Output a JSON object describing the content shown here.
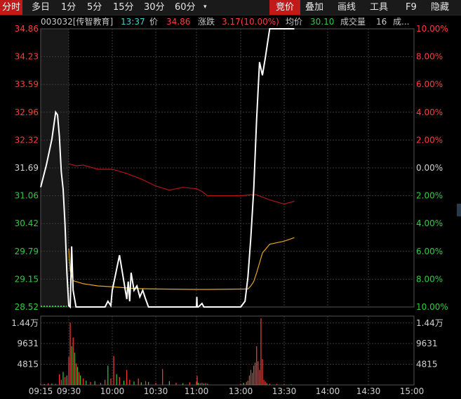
{
  "toolbar": {
    "items": [
      "分时",
      "多日",
      "1分",
      "5分",
      "15分",
      "30分",
      "60分"
    ],
    "more_symbol": "▾",
    "right_items": [
      "竞价",
      "叠加",
      "画线",
      "工具",
      "F9",
      "隐藏"
    ],
    "active_left": "分时",
    "active_right": "竞价"
  },
  "info": {
    "stock": "003032[传智教育]",
    "time": "13:37",
    "price_label": "价",
    "price": "34.86",
    "change_label": "涨跌",
    "change": "3.17(10.00%)",
    "avg_label": "均价",
    "avg": "30.10",
    "volume_label": "成交量",
    "volume": "16",
    "more_label": "成..."
  },
  "axes": {
    "price_ticks": [
      "34.86",
      "34.23",
      "33.59",
      "32.96",
      "32.32",
      "31.69",
      "31.06",
      "30.42",
      "29.79",
      "29.15",
      "28.52"
    ],
    "pct_ticks": [
      "10.00%",
      "8.00%",
      "6.00%",
      "4.00%",
      "2.00%",
      "0.00%",
      "2.00%",
      "4.00%",
      "6.00%",
      "8.00%",
      "10.00%"
    ],
    "volume_ticks": [
      "1.44万",
      "9631",
      "4815"
    ],
    "time_ticks": [
      "09:15",
      "09:30",
      "10:00",
      "10:30",
      "11:00",
      "13:00",
      "13:30",
      "14:00",
      "14:30",
      "15:00"
    ]
  },
  "colors": {
    "up": "#ff3b3b",
    "down": "#2ecc40",
    "price_line": "#ffffff",
    "avg_line": "#e6a817",
    "diff_line": "#b01616",
    "grid": "#3a3a3a"
  },
  "chart_data": {
    "type": "line",
    "title": "",
    "xlabel": "",
    "ylabel": "",
    "ylim": [
      28.52,
      34.86
    ],
    "prev_close": 31.69,
    "series": [
      {
        "x": [
          "09:15",
          "09:18",
          "09:21",
          "09:23",
          "09:24",
          "09:25",
          "09:26",
          "09:27",
          "09:28",
          "09:29",
          "09:30",
          "09:31",
          "09:32",
          "09:33",
          "09:35",
          "09:40",
          "09:50",
          "09:55",
          "09:57",
          "09:59",
          "10:00",
          "10:05",
          "10:08",
          "10:10",
          "10:11",
          "10:12",
          "10:13",
          "10:15",
          "10:17",
          "10:19",
          "10:21",
          "10:23",
          "10:25",
          "10:28",
          "10:30",
          "10:32",
          "10:35",
          "10:40",
          "10:50",
          "11:00",
          "11:01",
          "11:02",
          "11:05",
          "11:15",
          "11:20",
          "11:25",
          "11:30",
          "13:00",
          "13:03",
          "13:05",
          "13:07",
          "13:09",
          "13:11",
          "13:13",
          "13:15",
          "13:17",
          "13:20",
          "13:25",
          "13:30",
          "13:37"
        ],
        "values": [
          31.25,
          31.75,
          32.35,
          32.96,
          32.9,
          32.4,
          31.6,
          31.2,
          30.4,
          29.3,
          28.55,
          28.52,
          29.9,
          28.9,
          28.52,
          28.52,
          28.52,
          28.52,
          28.65,
          28.55,
          28.9,
          29.7,
          29.1,
          28.7,
          29.1,
          28.65,
          29.3,
          28.9,
          29.0,
          28.75,
          28.9,
          28.7,
          28.52,
          28.52,
          28.52,
          28.52,
          28.52,
          28.52,
          28.52,
          28.52,
          28.75,
          28.52,
          28.52,
          28.6,
          28.52,
          28.52,
          28.52,
          28.52,
          28.65,
          29.2,
          30.1,
          31.2,
          32.8,
          34.1,
          33.8,
          34.2,
          34.86,
          34.86,
          34.86,
          34.86
        ]
      },
      {
        "x": [
          "09:30",
          "09:31",
          "09:33",
          "09:40",
          "09:50",
          "10:00",
          "10:15",
          "10:30",
          "11:00",
          "11:30",
          "13:05",
          "13:07",
          "13:09",
          "13:11",
          "13:15",
          "13:20",
          "13:30",
          "13:37"
        ],
        "values": [
          29.85,
          29.35,
          29.12,
          29.05,
          29.0,
          28.98,
          28.94,
          28.93,
          28.92,
          28.92,
          28.93,
          29.0,
          29.1,
          29.3,
          29.75,
          29.95,
          30.02,
          30.1
        ]
      },
      {
        "x": [
          "09:30",
          "09:35",
          "09:40",
          "09:50",
          "10:00",
          "10:10",
          "10:20",
          "10:30",
          "10:40",
          "10:50",
          "11:00",
          "11:15",
          "11:30",
          "13:00",
          "13:10",
          "13:20",
          "13:30",
          "13:37"
        ],
        "values": [
          0.3,
          0.15,
          0.2,
          -0.1,
          -0.1,
          -0.4,
          -0.8,
          -1.3,
          -1.6,
          -1.4,
          -1.5,
          -1.7,
          -2.0,
          -2.0,
          -1.9,
          -2.3,
          -2.6,
          -2.4
        ]
      }
    ],
    "volume_ylim": [
      0,
      16000
    ],
    "volume_bars": [
      {
        "t": "09:15",
        "v": 300
      },
      {
        "t": "09:17",
        "v": 200
      },
      {
        "t": "09:19",
        "v": 400
      },
      {
        "t": "09:21",
        "v": 300
      },
      {
        "t": "09:23",
        "v": 250
      },
      {
        "t": "09:25",
        "v": 2500
      },
      {
        "t": "09:26",
        "v": 1200
      },
      {
        "t": "09:27",
        "v": 3000
      },
      {
        "t": "09:28",
        "v": 1800
      },
      {
        "t": "09:29",
        "v": 2200
      },
      {
        "t": "09:30",
        "v": 6500
      },
      {
        "t": "09:31",
        "v": 14500
      },
      {
        "t": "09:32",
        "v": 9000
      },
      {
        "t": "09:33",
        "v": 11000
      },
      {
        "t": "09:34",
        "v": 7500
      },
      {
        "t": "09:35",
        "v": 5000
      },
      {
        "t": "09:36",
        "v": 4200
      },
      {
        "t": "09:37",
        "v": 3000
      },
      {
        "t": "09:38",
        "v": 2200
      },
      {
        "t": "09:40",
        "v": 1500
      },
      {
        "t": "09:42",
        "v": 1000
      },
      {
        "t": "09:45",
        "v": 700
      },
      {
        "t": "09:48",
        "v": 900
      },
      {
        "t": "09:52",
        "v": 500
      },
      {
        "t": "09:55",
        "v": 1200
      },
      {
        "t": "09:57",
        "v": 4500
      },
      {
        "t": "09:59",
        "v": 1500
      },
      {
        "t": "10:01",
        "v": 6700
      },
      {
        "t": "10:03",
        "v": 2500
      },
      {
        "t": "10:05",
        "v": 1800
      },
      {
        "t": "10:08",
        "v": 1000
      },
      {
        "t": "10:10",
        "v": 3500
      },
      {
        "t": "10:12",
        "v": 1200
      },
      {
        "t": "10:15",
        "v": 800
      },
      {
        "t": "10:18",
        "v": 1500
      },
      {
        "t": "10:20",
        "v": 600
      },
      {
        "t": "10:23",
        "v": 900
      },
      {
        "t": "10:25",
        "v": 700
      },
      {
        "t": "10:30",
        "v": 500
      },
      {
        "t": "10:35",
        "v": 3700
      },
      {
        "t": "10:40",
        "v": 900
      },
      {
        "t": "10:45",
        "v": 500
      },
      {
        "t": "10:50",
        "v": 400
      },
      {
        "t": "10:55",
        "v": 600
      },
      {
        "t": "11:00",
        "v": 700
      },
      {
        "t": "11:02",
        "v": 2100
      },
      {
        "t": "11:05",
        "v": 500
      },
      {
        "t": "11:10",
        "v": 400
      },
      {
        "t": "11:15",
        "v": 500
      },
      {
        "t": "11:20",
        "v": 300
      },
      {
        "t": "11:25",
        "v": 400
      },
      {
        "t": "11:30",
        "v": 300
      },
      {
        "t": "13:00",
        "v": 300
      },
      {
        "t": "13:02",
        "v": 500
      },
      {
        "t": "13:04",
        "v": 700
      },
      {
        "t": "13:05",
        "v": 1000
      },
      {
        "t": "13:06",
        "v": 2200
      },
      {
        "t": "13:07",
        "v": 3500
      },
      {
        "t": "13:08",
        "v": 2800
      },
      {
        "t": "13:09",
        "v": 4500
      },
      {
        "t": "13:10",
        "v": 5200
      },
      {
        "t": "13:11",
        "v": 9000
      },
      {
        "t": "13:12",
        "v": 5500
      },
      {
        "t": "13:13",
        "v": 3500
      },
      {
        "t": "13:14",
        "v": 15500
      },
      {
        "t": "13:15",
        "v": 6000
      },
      {
        "t": "13:16",
        "v": 1200
      },
      {
        "t": "13:17",
        "v": 800
      },
      {
        "t": "13:18",
        "v": 400
      },
      {
        "t": "13:20",
        "v": 300
      },
      {
        "t": "13:25",
        "v": 250
      },
      {
        "t": "13:30",
        "v": 200
      },
      {
        "t": "13:35",
        "v": 150
      }
    ],
    "volume_down_times": [
      "09:17",
      "09:21",
      "09:27",
      "09:29",
      "09:32",
      "09:34",
      "09:36",
      "09:38",
      "09:42",
      "09:48",
      "09:57",
      "10:03",
      "10:08",
      "10:15",
      "10:20",
      "10:25",
      "10:40",
      "10:50",
      "11:05",
      "11:20",
      "13:02",
      "13:18"
    ]
  }
}
